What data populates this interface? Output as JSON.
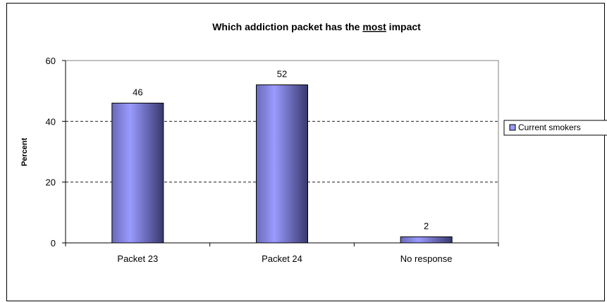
{
  "chart_data": {
    "type": "bar",
    "title_parts": [
      "Which addiction packet has the ",
      "most",
      " impact"
    ],
    "ylabel": "Percent",
    "xlabel": "",
    "categories": [
      "Packet 23",
      "Packet 24",
      "No response"
    ],
    "series": [
      {
        "name": "Current smokers",
        "values": [
          46,
          52,
          2
        ]
      }
    ],
    "data_labels": [
      "46",
      "52",
      "2"
    ],
    "ylim": [
      0,
      60
    ],
    "yticks": [
      0,
      20,
      40,
      60
    ],
    "grid": "dashed horizontal",
    "legend_position": "right",
    "colors": {
      "bar_light": "#9999ff",
      "bar_dark": "#3c3c7a",
      "grid": "#000000"
    }
  }
}
